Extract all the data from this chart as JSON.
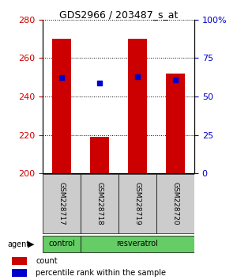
{
  "title": "GDS2966 / 203487_s_at",
  "samples": [
    "GSM228717",
    "GSM228718",
    "GSM228719",
    "GSM228720"
  ],
  "bar_bottom": 200,
  "bar_tops": [
    270,
    219,
    270,
    252
  ],
  "percentile_values": [
    62.5,
    59.0,
    63.0,
    61.0
  ],
  "ylim_left": [
    200,
    280
  ],
  "ylim_right": [
    0,
    100
  ],
  "yticks_left": [
    200,
    220,
    240,
    260,
    280
  ],
  "yticks_right": [
    0,
    25,
    50,
    75,
    100
  ],
  "bar_color": "#cc0000",
  "dot_color": "#0000cc",
  "group_color": "#66cc66",
  "sample_box_color": "#cccccc",
  "agent_label": "agent",
  "legend_bar_label": "count",
  "legend_dot_label": "percentile rank within the sample",
  "fig_width": 3.0,
  "fig_height": 3.54
}
